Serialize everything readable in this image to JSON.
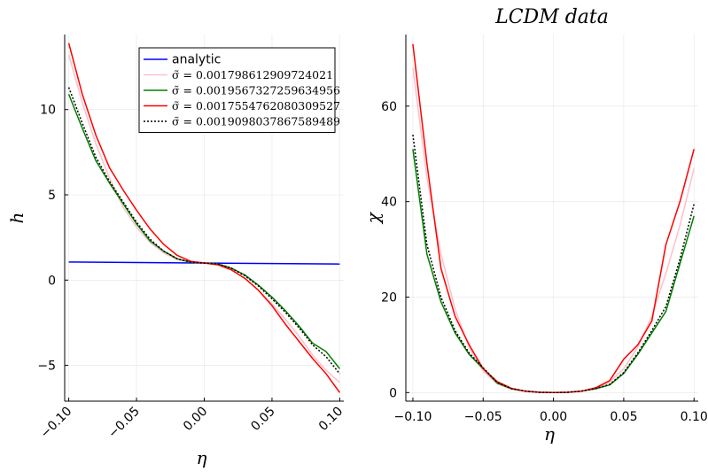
{
  "chart_data": [
    {
      "type": "line",
      "title": "",
      "xlabel": "η",
      "ylabel": "h",
      "xlim": [
        -0.103,
        0.103
      ],
      "ylim": [
        -7.1,
        14.4
      ],
      "xticks": [
        -0.1,
        -0.05,
        0.0,
        0.05,
        0.1
      ],
      "xtick_labels": [
        "−0.10",
        "−0.05",
        "0.00",
        "0.05",
        "0.10"
      ],
      "xtick_rotation": -45,
      "yticks": [
        -5,
        0,
        5,
        10
      ],
      "ytick_labels": [
        "−5",
        "0",
        "5",
        "10"
      ],
      "grid": true,
      "legend_position": "top-right",
      "series": [
        {
          "name": "analytic",
          "color": "#0000ff",
          "dash": "solid",
          "x": [
            -0.1,
            0.1
          ],
          "y": [
            1.06,
            0.94
          ]
        },
        {
          "name": "σ̃ = 0.001798612909724021",
          "color": "#ffc0cb",
          "dash": "solid",
          "x": [
            -0.1,
            -0.09,
            -0.08,
            -0.07,
            -0.06,
            -0.05,
            -0.04,
            -0.03,
            -0.02,
            -0.01,
            0.0,
            0.01,
            0.02,
            0.03,
            0.04,
            0.05,
            0.06,
            0.07,
            0.08,
            0.09,
            0.1
          ],
          "y": [
            13.2,
            10.4,
            8.0,
            6.0,
            4.3,
            3.1,
            2.2,
            1.6,
            1.2,
            1.05,
            1.0,
            0.9,
            0.6,
            0.1,
            -0.6,
            -1.4,
            -2.3,
            -3.3,
            -4.4,
            -5.3,
            -6.0
          ]
        },
        {
          "name": "σ̃ = 0.0019567327259634956",
          "color": "#008000",
          "dash": "solid",
          "x": [
            -0.1,
            -0.09,
            -0.08,
            -0.07,
            -0.06,
            -0.05,
            -0.04,
            -0.03,
            -0.02,
            -0.01,
            0.0,
            0.01,
            0.02,
            0.03,
            0.04,
            0.05,
            0.06,
            0.07,
            0.08,
            0.09,
            0.1
          ],
          "y": [
            10.9,
            8.9,
            7.0,
            5.7,
            4.5,
            3.3,
            2.3,
            1.7,
            1.25,
            1.05,
            1.0,
            0.95,
            0.7,
            0.3,
            -0.3,
            -1.0,
            -1.8,
            -2.7,
            -3.7,
            -4.2,
            -5.2
          ]
        },
        {
          "name": "σ̃ = 0.0017554762080309527",
          "color": "#ff0000",
          "dash": "solid",
          "x": [
            -0.1,
            -0.09,
            -0.08,
            -0.07,
            -0.06,
            -0.05,
            -0.04,
            -0.03,
            -0.02,
            -0.01,
            0.0,
            0.01,
            0.02,
            0.03,
            0.04,
            0.05,
            0.06,
            0.07,
            0.08,
            0.09,
            0.1
          ],
          "y": [
            13.9,
            10.9,
            8.5,
            6.6,
            5.3,
            4.1,
            3.0,
            2.1,
            1.45,
            1.1,
            1.0,
            0.9,
            0.6,
            0.1,
            -0.6,
            -1.5,
            -2.6,
            -3.6,
            -4.6,
            -5.5,
            -6.6
          ]
        },
        {
          "name": "σ̃ = 0.0019098037867589489",
          "color": "#000000",
          "dash": "dotted",
          "x": [
            -0.1,
            -0.09,
            -0.08,
            -0.07,
            -0.06,
            -0.05,
            -0.04,
            -0.03,
            -0.02,
            -0.01,
            0.0,
            0.01,
            0.02,
            0.03,
            0.04,
            0.05,
            0.06,
            0.07,
            0.08,
            0.09,
            0.1
          ],
          "y": [
            11.3,
            9.2,
            7.2,
            5.8,
            4.6,
            3.4,
            2.4,
            1.7,
            1.25,
            1.05,
            1.0,
            0.95,
            0.7,
            0.25,
            -0.35,
            -1.1,
            -1.9,
            -2.8,
            -3.8,
            -4.5,
            -5.5
          ]
        }
      ]
    },
    {
      "type": "line",
      "title": "LCDM data",
      "xlabel": "η",
      "ylabel": "χ",
      "xlim": [
        -0.105,
        0.103
      ],
      "ylim": [
        -1.8,
        75.0
      ],
      "xticks": [
        -0.1,
        -0.05,
        0.0,
        0.05,
        0.1
      ],
      "xtick_labels": [
        "−0.10",
        "−0.05",
        "0.00",
        "0.05",
        "0.10"
      ],
      "yticks": [
        0,
        20,
        40,
        60
      ],
      "ytick_labels": [
        "0",
        "20",
        "40",
        "60"
      ],
      "grid": true,
      "series": [
        {
          "color": "#ffc0cb",
          "dash": "solid",
          "x": [
            -0.1,
            -0.09,
            -0.08,
            -0.07,
            -0.06,
            -0.05,
            -0.04,
            -0.03,
            -0.02,
            -0.01,
            0.0,
            0.01,
            0.02,
            0.03,
            0.04,
            0.05,
            0.06,
            0.07,
            0.08,
            0.09,
            0.1
          ],
          "y": [
            68.0,
            45.0,
            29.0,
            17.5,
            9.5,
            4.5,
            1.8,
            0.7,
            0.25,
            0.05,
            0.0,
            0.05,
            0.3,
            0.9,
            2.2,
            5.0,
            9.5,
            16.0,
            25.0,
            35.0,
            47.0
          ]
        },
        {
          "color": "#008000",
          "dash": "solid",
          "x": [
            -0.1,
            -0.09,
            -0.08,
            -0.07,
            -0.06,
            -0.05,
            -0.04,
            -0.03,
            -0.02,
            -0.01,
            0.0,
            0.01,
            0.02,
            0.03,
            0.04,
            0.05,
            0.06,
            0.07,
            0.08,
            0.09,
            0.1
          ],
          "y": [
            51.0,
            29.0,
            19.0,
            12.5,
            8.0,
            5.0,
            2.0,
            0.8,
            0.3,
            0.05,
            0.0,
            0.05,
            0.3,
            0.8,
            1.6,
            4.0,
            8.0,
            12.5,
            17.0,
            27.0,
            37.0
          ]
        },
        {
          "color": "#ff0000",
          "dash": "solid",
          "x": [
            -0.1,
            -0.09,
            -0.08,
            -0.07,
            -0.06,
            -0.05,
            -0.04,
            -0.03,
            -0.02,
            -0.01,
            0.0,
            0.01,
            0.02,
            0.03,
            0.04,
            0.05,
            0.06,
            0.07,
            0.08,
            0.09,
            0.1
          ],
          "y": [
            73.0,
            48.0,
            26.0,
            16.0,
            10.0,
            5.0,
            2.3,
            0.9,
            0.3,
            0.05,
            0.0,
            0.05,
            0.3,
            1.0,
            2.5,
            7.0,
            10.0,
            15.0,
            31.0,
            40.0,
            51.0
          ]
        },
        {
          "color": "#000000",
          "dash": "dotted",
          "x": [
            -0.1,
            -0.09,
            -0.08,
            -0.07,
            -0.06,
            -0.05,
            -0.04,
            -0.03,
            -0.02,
            -0.01,
            0.0,
            0.01,
            0.02,
            0.03,
            0.04,
            0.05,
            0.06,
            0.07,
            0.08,
            0.09,
            0.1
          ],
          "y": [
            54.0,
            31.0,
            20.0,
            13.0,
            8.3,
            5.2,
            2.1,
            0.85,
            0.3,
            0.05,
            0.0,
            0.05,
            0.3,
            0.85,
            1.7,
            4.2,
            8.3,
            13.0,
            18.0,
            28.0,
            39.5
          ]
        }
      ]
    }
  ]
}
